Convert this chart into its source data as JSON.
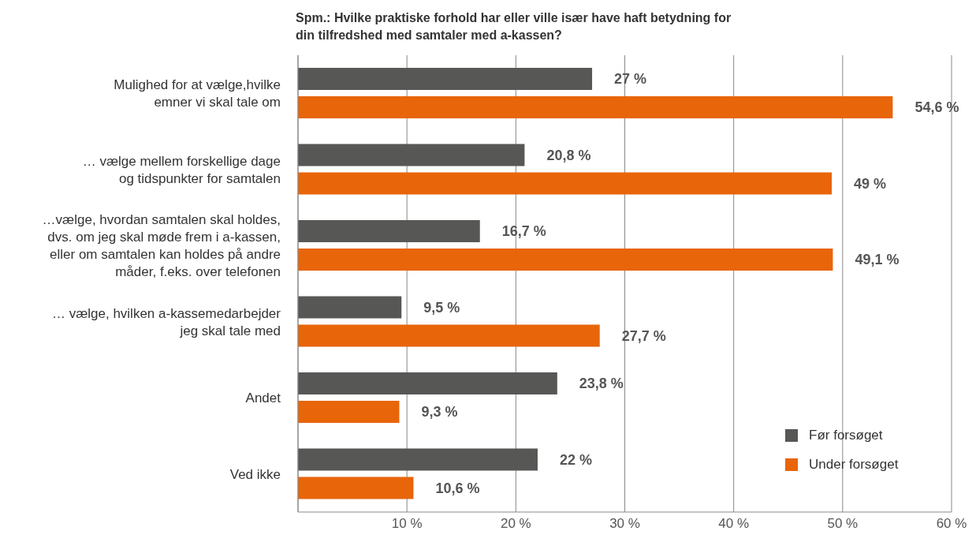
{
  "chart_data": {
    "type": "bar",
    "orientation": "horizontal",
    "title": "Spm.: Hvilke praktiske forhold har eller ville især have haft betydning for din tilfredshed med samtaler med a-kassen?",
    "categories": [
      "Mulighed for at vælge,hvilke\nemner vi skal tale om",
      "… vælge mellem forskellige dage\nog tidspunkter for samtalen",
      "…vælge, hvordan samtalen skal holdes,\ndvs. om jeg skal møde frem i a-kassen,\neller om samtalen kan holdes på andre\nmåder, f.eks. over telefonen",
      "… vælge, hvilken a-kassemedarbejder\njeg skal tale med",
      "Andet",
      "Ved ikke"
    ],
    "series": [
      {
        "name": "Før forsøget",
        "color": "#575756",
        "values": [
          27,
          20.8,
          16.7,
          9.5,
          23.8,
          22
        ],
        "value_labels": [
          "27 %",
          "20,8 %",
          "16,7 %",
          "9,5 %",
          "23,8 %",
          "22 %"
        ]
      },
      {
        "name": "Under forsøget",
        "color": "#e8650a",
        "values": [
          54.6,
          49,
          49.1,
          27.7,
          9.3,
          10.6
        ],
        "value_labels": [
          "54,6 %",
          "49 %",
          "49,1 %",
          "27,7 %",
          "9,3 %",
          "10,6 %"
        ]
      }
    ],
    "xlim": [
      0,
      60
    ],
    "xticks": [
      {
        "value": 0,
        "label": null
      },
      {
        "value": 10,
        "label": "10 %"
      },
      {
        "value": 20,
        "label": "20 %"
      },
      {
        "value": 30,
        "label": "30 %"
      },
      {
        "value": 40,
        "label": "40 %"
      },
      {
        "value": 50,
        "label": "50 %"
      },
      {
        "value": 60,
        "label": "60 %"
      }
    ],
    "grid": "x",
    "legend": "bottom right"
  }
}
